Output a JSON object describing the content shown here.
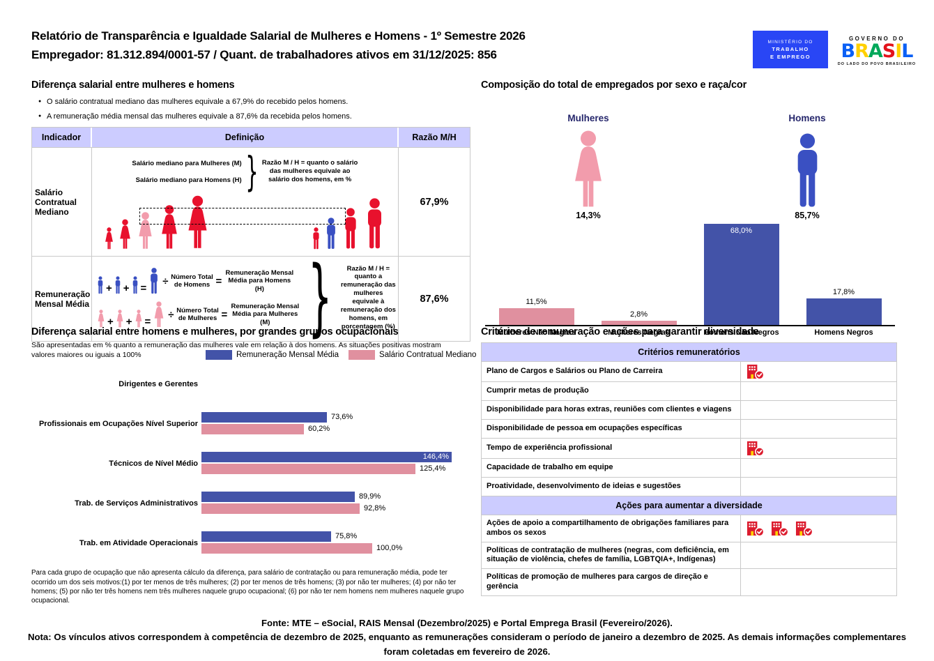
{
  "header": {
    "title": "Relatório de Transparência e Igualdade Salarial de Mulheres e Homens - 1º Semestre 2026",
    "subtitle": "Empregador: 81.312.894/0001-57 / Quant. de trabalhadores ativos em 31/12/2025: 856",
    "ministry_logo": {
      "line1": "MINISTÉRIO DO",
      "line2": "TRABALHO",
      "line3": "E EMPREGO"
    },
    "gov_logo": {
      "top": "GOVERNO DO",
      "name": "BRASIL",
      "bottom": "DO LADO DO POVO BRASILEIRO"
    }
  },
  "pay_gap": {
    "title": "Diferença salarial entre mulheres e homens",
    "bullets": [
      "O salário contratual mediano das mulheres equivale a 67,9% do recebido pelos homens.",
      "A remuneração média mensal das mulheres equivale a 87,6% da recebida pelos homens."
    ],
    "table": {
      "headers": [
        "Indicador",
        "Definição",
        "Razão M/H"
      ],
      "row1": {
        "indicator": "Salário Contratual Mediano",
        "def_line1": "Salário mediano para Mulheres (M)",
        "def_line2": "Salário mediano para Homens (H)",
        "def_note": "Razão M / H = quanto o salário das mulheres equivale ao salário dos homens, em %",
        "ratio": "67,9%"
      },
      "row2": {
        "indicator": "Remuneração Mensal Média",
        "men_count_label": "Número Total de Homens",
        "men_result_label": "Remuneração Mensal Média para Homens (H)",
        "women_count_label": "Número Total de Mulheres",
        "women_result_label": "Remuneração Mensal Média para Mulheres (M)",
        "def_note": "Razão M / H = quanto a remuneração das mulheres equivale à remuneração dos homens, em porcentagem (%)",
        "ratio": "87,6%",
        "divide_sign": "÷",
        "plus_sign": "+",
        "equals_sign": "="
      }
    }
  },
  "composition": {
    "title": "Composição do total de empregados por sexo e raça/cor",
    "women_label": "Mulheres",
    "women_pct": "14,3%",
    "men_label": "Homens",
    "men_pct": "85,7%"
  },
  "occupational": {
    "title": "Diferença salarial entre homens e mulheres, por grandes grupos ocupacionais",
    "subtitle": "São apresentadas em % quanto a remuneração das mulheres vale em relação à dos homens. As situações positivas mostram valores maiores ou iguais a 100%",
    "footnote": "Para cada grupo de ocupação que não apresenta cálculo da diferença, para salário de contratação ou para remuneração média, pode ter ocorrido um dos seis motivos:(1) por ter menos de três mulheres; (2) por ter menos de três homens; (3) por não ter mulheres; (4) por não ter homens; (5) por não ter três homens nem três mulheres naquele grupo ocupacional; (6) por não ter nem homens nem mulheres naquele grupo ocupacional."
  },
  "criteria": {
    "title": "Critérios de remuneração e ações para garantir diversidade",
    "sections": [
      {
        "header": "Critérios remuneratórios",
        "rows": [
          {
            "label": "Plano de Cargos e Salários ou Plano de Carreira",
            "checks": 1
          },
          {
            "label": "Cumprir metas de produção",
            "checks": 0
          },
          {
            "label": "Disponibilidade para horas extras, reuniões com clientes e viagens",
            "checks": 0
          },
          {
            "label": "Disponibilidade de pessoa em ocupações específicas",
            "checks": 0
          },
          {
            "label": "Tempo de experiência profissional",
            "checks": 1
          },
          {
            "label": "Capacidade de trabalho em equipe",
            "checks": 0
          },
          {
            "label": "Proatividade, desenvolvimento de ideias e sugestões",
            "checks": 0
          }
        ]
      },
      {
        "header": "Ações para aumentar a diversidade",
        "rows": [
          {
            "label": "Ações de apoio a compartilhamento de obrigações familiares para ambos os sexos",
            "checks": 3
          },
          {
            "label": "Políticas de contratação de mulheres (negras, com deficiência, em situação de violência, chefes de família, LGBTQIA+, Indígenas)",
            "checks": 0
          },
          {
            "label": "Políticas de promoção de mulheres para cargos de direção e gerência",
            "checks": 0
          }
        ]
      }
    ]
  },
  "footer": {
    "fonte": "Fonte: MTE – eSocial, RAIS Mensal (Dezembro/2025) e Portal Emprega Brasil (Fevereiro/2026).",
    "nota": "Nota: Os vínculos ativos correspondem à competência de dezembro de 2025, enquanto as remunerações consideram o período de janeiro a dezembro de 2025. As demais informações complementares foram coletadas em fevereiro de 2026."
  },
  "colors": {
    "lavender": "#CCCCFF",
    "bar_blue": "#4353A8",
    "bar_pink": "#E0909F",
    "figure_red": "#E8112D",
    "figure_pink": "#F29CAC",
    "figure_blue": "#3A50C2",
    "navy_text": "#26276C",
    "red": "#DC1C2E",
    "ministry_blue": "#2946F5",
    "border_gray": "#C9C9C9"
  },
  "chart_data": [
    {
      "type": "bar",
      "title": "Composição do total de empregados por sexo e raça/cor",
      "categories": [
        "Mulheres Não Negras",
        "Mulheres Negras",
        "Homens Não Negros",
        "Homens Negros"
      ],
      "values": [
        11.5,
        2.8,
        68.0,
        17.8
      ],
      "value_labels": [
        "11,5%",
        "2,8%",
        "68,0%",
        "17,8%"
      ],
      "bar_colors": [
        "#E0909F",
        "#E0909F",
        "#4353A8",
        "#4353A8"
      ],
      "ylim": [
        0,
        70
      ],
      "grid": false,
      "legend": "none",
      "summary_values": {
        "Mulheres": 14.3,
        "Homens": 85.7
      }
    },
    {
      "type": "bar",
      "orientation": "horizontal",
      "title": "Diferença salarial entre homens e mulheres, por grandes grupos ocupacionais",
      "categories": [
        "Dirigentes e Gerentes",
        "Profissionais em Ocupações Nível Superior",
        "Técnicos de Nível Médio",
        "Trab. de Serviços Administrativos",
        "Trab. em Atividade Operacionais"
      ],
      "series": [
        {
          "name": "Remuneração Mensal Média",
          "color": "#4353A8",
          "values": [
            null,
            73.6,
            146.4,
            89.9,
            75.8
          ],
          "labels": [
            "",
            "73,6%",
            "146,4%",
            "89,9%",
            "75,8%"
          ]
        },
        {
          "name": "Salário Contratual Mediano",
          "color": "#E0909F",
          "values": [
            null,
            60.2,
            125.4,
            92.8,
            100.0
          ],
          "labels": [
            "",
            "60,2%",
            "125,4%",
            "92,8%",
            "100,0%"
          ]
        }
      ],
      "xlim": [
        0,
        150
      ],
      "grid": false,
      "legend_position": "top"
    }
  ]
}
